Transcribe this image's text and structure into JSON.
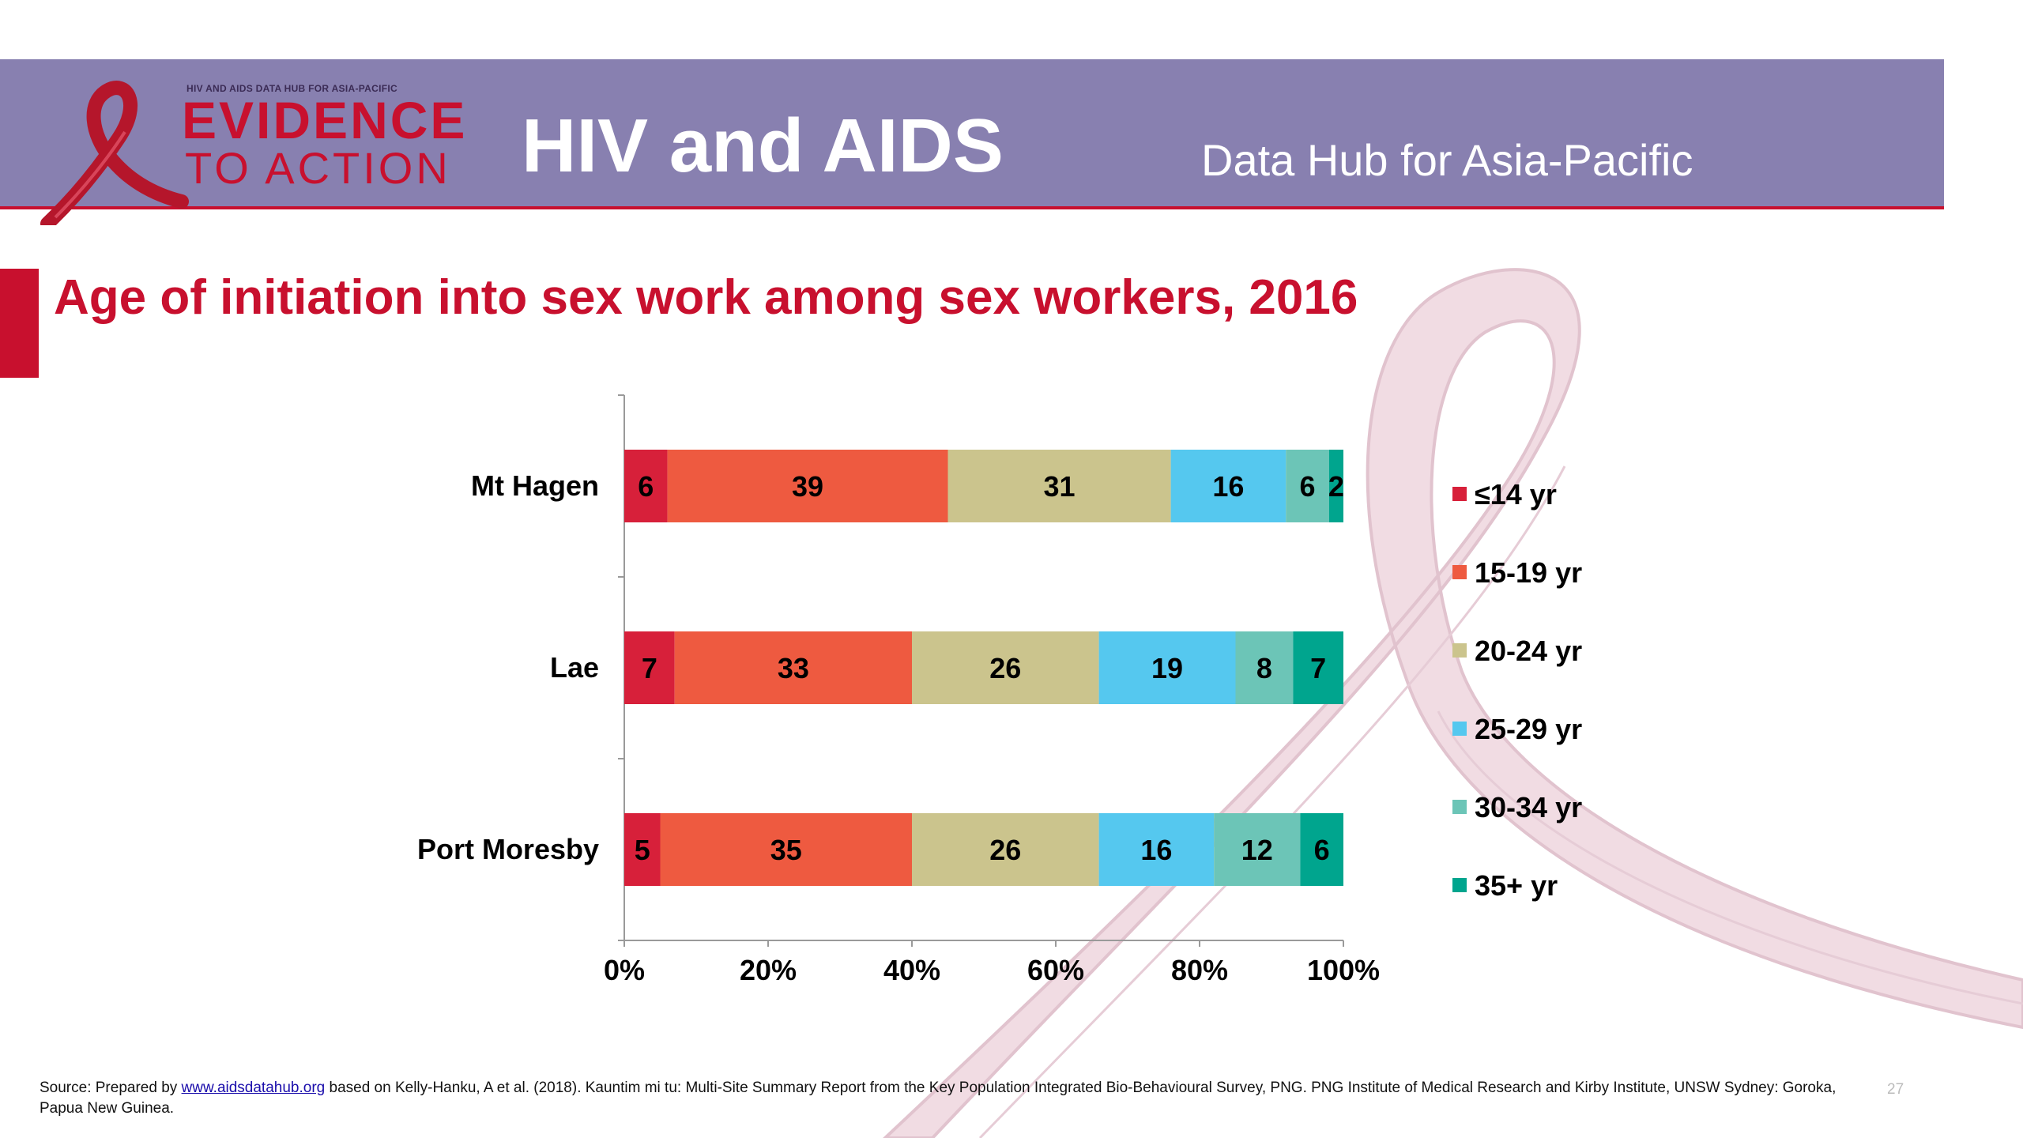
{
  "header": {
    "logo_small_text": "HIV AND AIDS DATA HUB FOR ASIA-PACIFIC",
    "logo_line1": "EVIDENCE",
    "logo_line2": "TO ACTION",
    "title": "HIV and AIDS",
    "subtitle": "Data Hub for Asia-Pacific"
  },
  "slide_title": "Age of initiation into sex work among sex workers, 2016",
  "chart_data": {
    "type": "bar",
    "orientation": "horizontal",
    "stacked": "percent",
    "categories": [
      "Mt Hagen",
      "Lae",
      "Port Moresby"
    ],
    "series": [
      {
        "name": "≤14 yr",
        "values": [
          6,
          7,
          5
        ],
        "color": "#d7203a"
      },
      {
        "name": "15-19 yr",
        "values": [
          39,
          33,
          35
        ],
        "color": "#ee5a40"
      },
      {
        "name": "20-24 yr",
        "values": [
          31,
          26,
          26
        ],
        "color": "#cbc48d"
      },
      {
        "name": "25-29 yr",
        "values": [
          16,
          19,
          16
        ],
        "color": "#55c8ef"
      },
      {
        "name": "30-34 yr",
        "values": [
          6,
          8,
          12
        ],
        "color": "#6cc5b7"
      },
      {
        "name": "35+ yr",
        "values": [
          2,
          7,
          6
        ],
        "color": "#00a58e"
      }
    ],
    "xticks": [
      "0%",
      "20%",
      "40%",
      "60%",
      "80%",
      "100%"
    ],
    "xlim": [
      0,
      100
    ],
    "legend_position": "right",
    "grid": false
  },
  "footer": {
    "source_prefix": "Source: Prepared by ",
    "source_link": "www.aidsdatahub.org",
    "source_rest": " based on Kelly-Hanku, A et al. (2018). Kauntim mi tu: Multi-Site Summary Report from the Key Population Integrated Bio-Behavioural Survey, PNG. PNG Institute of Medical Research and Kirby Institute, UNSW Sydney: Goroka, Papua New Guinea.",
    "page_number": "27"
  }
}
